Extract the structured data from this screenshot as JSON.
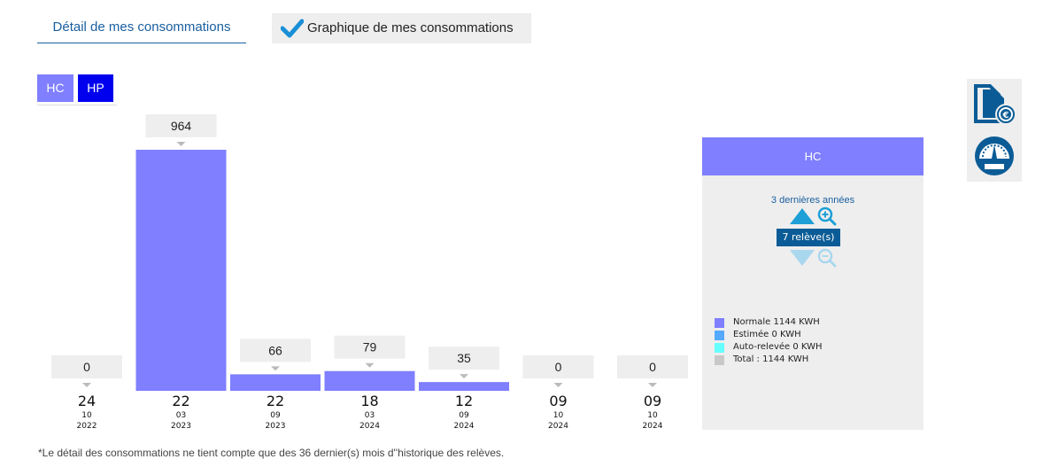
{
  "tabs": {
    "detail_label": "Détail de mes consommations",
    "graph_label": "Graphique de mes consommations"
  },
  "toggles": {
    "hc": "HC",
    "hp": "HP"
  },
  "chart_data": {
    "type": "bar",
    "series": [
      {
        "name": "HC",
        "values": [
          0,
          964,
          66,
          79,
          35,
          0,
          0
        ]
      }
    ],
    "labels": [
      "0",
      "964",
      "66",
      "79",
      "35",
      "0",
      "0"
    ],
    "dates": [
      {
        "day": "24",
        "month": "10",
        "year": "2022"
      },
      {
        "day": "22",
        "month": "03",
        "year": "2023"
      },
      {
        "day": "22",
        "month": "09",
        "year": "2023"
      },
      {
        "day": "18",
        "month": "03",
        "year": "2024"
      },
      {
        "day": "12",
        "month": "09",
        "year": "2024"
      },
      {
        "day": "09",
        "month": "10",
        "year": "2024"
      },
      {
        "day": "09",
        "month": "10",
        "year": "2024"
      }
    ],
    "ylim": [
      0,
      964
    ],
    "grid": false,
    "bar_color": "#7f7fff"
  },
  "panel": {
    "header": "HC",
    "period": "3 dernières années",
    "releve": "7 relève(s)",
    "legend": [
      {
        "label": "Normale 1144 KWH",
        "color": "#7f7fff"
      },
      {
        "label": "Estimée 0 KWH",
        "color": "#55aaff"
      },
      {
        "label": "Auto-relevée 0 KWH",
        "color": "#66ffff"
      },
      {
        "label": "Total : 1144 KWH",
        "color": "#c8c8c8"
      }
    ]
  },
  "side_icons": [
    "document-euro-icon",
    "meter-gauge-icon"
  ],
  "footnote": "*Le détail des consommations ne tient compte que des 36 dernier(s) mois d''historique des relèves.",
  "colors": {
    "accent": "#1a5fa0",
    "hc": "#7f7fff",
    "hp": "#0000ee",
    "check": "#1a8fd6"
  }
}
